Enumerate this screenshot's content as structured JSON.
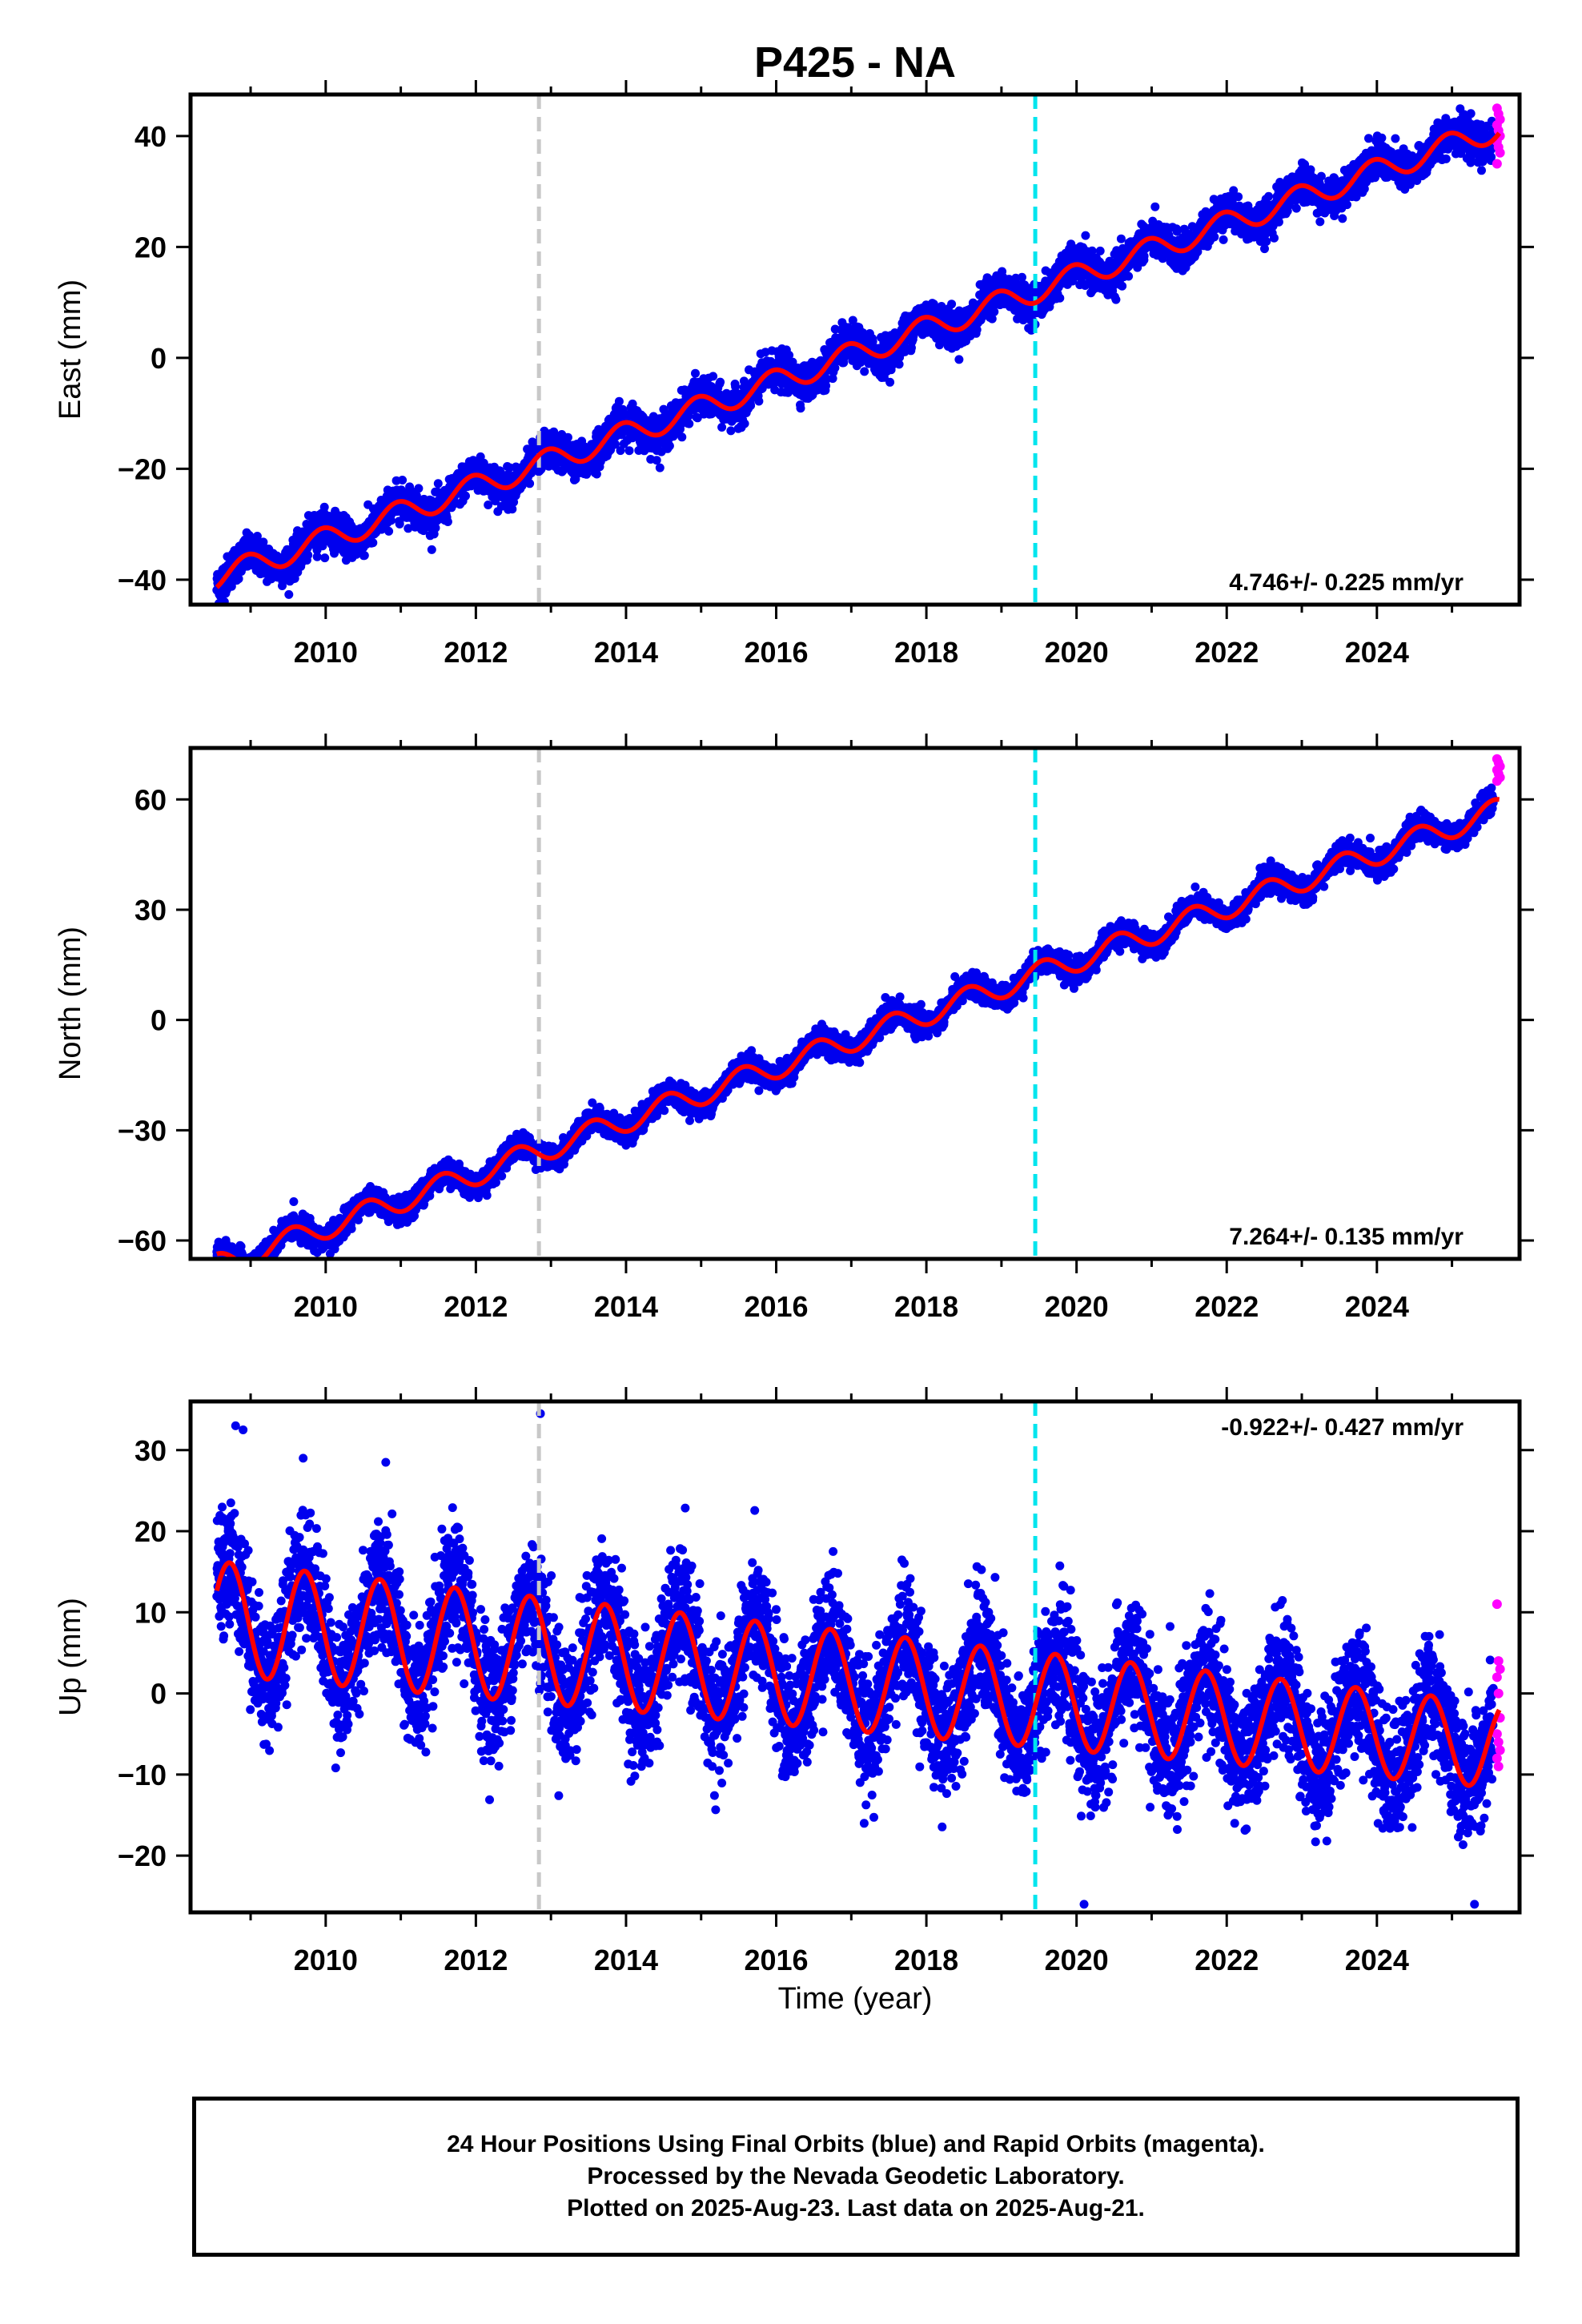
{
  "figure": {
    "title": "P425 - NA",
    "x_axis_label": "Time (year)"
  },
  "colors": {
    "final_orbits": "#0000ee",
    "rapid_orbits": "#ff00ff",
    "model_fit": "#ff0000",
    "event_line_1": "#c8c8c8",
    "event_line_2": "#00e5ee"
  },
  "footer": {
    "line1": "24 Hour Positions Using Final Orbits (blue) and Rapid Orbits (magenta).",
    "line2": "Processed by the Nevada Geodetic Laboratory.",
    "line3": "Plotted on 2025-Aug-23. Last data on 2025-Aug-21."
  },
  "chart_data": [
    {
      "type": "scatter",
      "component": "East",
      "ylabel": "East (mm)",
      "xlim": [
        2008.2,
        2025.9
      ],
      "ylim": [
        -44.5,
        47.5
      ],
      "xticks": [
        2010,
        2012,
        2014,
        2016,
        2018,
        2020,
        2022,
        2024
      ],
      "yticks": [
        -40,
        -20,
        0,
        20,
        40
      ],
      "rate_text": "4.746+/- 0.225 mm/yr",
      "rate_position": "bottom-right",
      "event_lines": [
        2012.84,
        2019.45
      ],
      "model": {
        "rate": 4.746,
        "y_at_2017": 0.5,
        "annual_amp": 2.2,
        "annual_phase_peak": 0.95
      },
      "scatter_noise_mm": 1.6,
      "rapid_samples": [
        45,
        44,
        43,
        42,
        41,
        40,
        39,
        38,
        37,
        35
      ],
      "series": [
        {
          "name": "Final Orbits",
          "color": "blue"
        },
        {
          "name": "Rapid Orbits",
          "color": "magenta"
        },
        {
          "name": "Model",
          "color": "red"
        }
      ]
    },
    {
      "type": "scatter",
      "component": "North",
      "ylabel": "North (mm)",
      "xlim": [
        2008.2,
        2025.9
      ],
      "ylim": [
        -65,
        74
      ],
      "xticks": [
        2010,
        2012,
        2014,
        2016,
        2018,
        2020,
        2022,
        2024
      ],
      "yticks": [
        -60,
        -30,
        0,
        30,
        60
      ],
      "rate_text": "7.264+/- 0.135 mm/yr",
      "rate_position": "bottom-right",
      "event_lines": [
        2012.84,
        2019.45
      ],
      "model": {
        "rate": 7.264,
        "y_at_2017": -5.5,
        "annual_amp": 3.2,
        "annual_phase_peak": 0.55
      },
      "scatter_noise_mm": 1.6,
      "rapid_samples": [
        71,
        70,
        69,
        68,
        67,
        66,
        65
      ],
      "series": [
        {
          "name": "Final Orbits",
          "color": "blue"
        },
        {
          "name": "Rapid Orbits",
          "color": "magenta"
        },
        {
          "name": "Model",
          "color": "red"
        }
      ]
    },
    {
      "type": "scatter",
      "component": "Up",
      "ylabel": "Up (mm)",
      "xlim": [
        2008.2,
        2025.9
      ],
      "ylim": [
        -27,
        36
      ],
      "xticks": [
        2010,
        2012,
        2014,
        2016,
        2018,
        2020,
        2022,
        2024
      ],
      "yticks": [
        -20,
        -10,
        0,
        10,
        20,
        30
      ],
      "rate_text": "-0.922+/- 0.427 mm/yr",
      "rate_position": "top-right",
      "event_lines": [
        2012.84,
        2019.45
      ],
      "model": {
        "rate": -0.922,
        "y_at_2017": 1.5,
        "annual_amp": 7.0,
        "annual_phase_peak": 0.72
      },
      "scatter_noise_mm": 3.8,
      "rapid_samples": [
        11,
        4,
        3,
        2,
        0,
        -3,
        -5,
        -6,
        -7,
        -8,
        -9
      ],
      "series": [
        {
          "name": "Final Orbits",
          "color": "blue"
        },
        {
          "name": "Rapid Orbits",
          "color": "magenta"
        },
        {
          "name": "Model",
          "color": "red"
        }
      ]
    }
  ]
}
